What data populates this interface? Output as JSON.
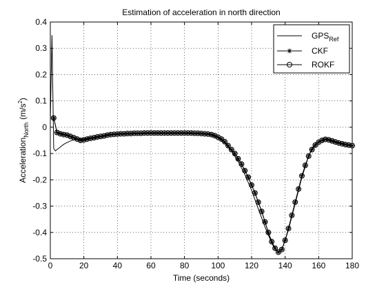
{
  "chart_data": {
    "type": "line",
    "title": "Estimation of  acceleration in north direction",
    "xlabel": "Time (seconds)",
    "ylabel": {
      "base": "Acceleration",
      "sub": "North",
      "unit_prefix": "(m/s",
      "unit_sup": "2",
      "unit_suffix": ")"
    },
    "xlim": [
      0,
      180
    ],
    "ylim": [
      -0.5,
      0.4
    ],
    "xticks": [
      0,
      20,
      40,
      60,
      80,
      100,
      120,
      140,
      160,
      180
    ],
    "yticks": [
      -0.5,
      -0.4,
      -0.3,
      -0.2,
      -0.1,
      0,
      0.1,
      0.2,
      0.3,
      0.4
    ],
    "grid": true,
    "legend_placement": "top-right",
    "series": [
      {
        "name": "GPS",
        "name_sub": "Ref",
        "marker": "none",
        "color": "#000000",
        "x": [
          0,
          1,
          2,
          3,
          4,
          6,
          8,
          10,
          12,
          14,
          16,
          18,
          20,
          22,
          25,
          30,
          35,
          40,
          50,
          60,
          70,
          80,
          90,
          95,
          100,
          104,
          108,
          112,
          116,
          120,
          124,
          128,
          130,
          132,
          134,
          135,
          136,
          137,
          138,
          140,
          142,
          144,
          146,
          148,
          150,
          152,
          154,
          156,
          158,
          160,
          162,
          164,
          165,
          166,
          168,
          170,
          172,
          174,
          176,
          178,
          180
        ],
        "values": [
          0.02,
          0.35,
          -0.08,
          -0.09,
          -0.085,
          -0.075,
          -0.065,
          -0.058,
          -0.052,
          -0.048,
          -0.046,
          -0.045,
          -0.044,
          -0.042,
          -0.04,
          -0.035,
          -0.03,
          -0.027,
          -0.025,
          -0.023,
          -0.023,
          -0.023,
          -0.025,
          -0.028,
          -0.04,
          -0.06,
          -0.09,
          -0.13,
          -0.18,
          -0.24,
          -0.31,
          -0.38,
          -0.41,
          -0.44,
          -0.465,
          -0.47,
          -0.475,
          -0.47,
          -0.465,
          -0.43,
          -0.39,
          -0.34,
          -0.29,
          -0.24,
          -0.19,
          -0.15,
          -0.11,
          -0.08,
          -0.065,
          -0.055,
          -0.05,
          -0.045,
          -0.045,
          -0.047,
          -0.05,
          -0.055,
          -0.06,
          -0.063,
          -0.066,
          -0.068,
          -0.07
        ]
      },
      {
        "name": "CKF",
        "marker": "asterisk",
        "color": "#000000",
        "x": [
          2,
          4,
          6,
          8,
          10,
          12,
          14,
          16,
          18,
          20,
          22,
          24,
          26,
          28,
          30,
          32,
          34,
          36,
          38,
          40,
          42,
          44,
          46,
          48,
          50,
          52,
          54,
          56,
          58,
          60,
          62,
          64,
          66,
          68,
          70,
          72,
          74,
          76,
          78,
          80,
          82,
          84,
          86,
          88,
          90,
          92,
          94,
          96,
          98,
          100,
          102,
          104,
          106,
          108,
          110,
          112,
          114,
          116,
          118,
          120,
          122,
          124,
          126,
          128,
          130,
          132,
          134,
          136,
          138,
          140,
          142,
          144,
          146,
          148,
          150,
          152,
          154,
          156,
          158,
          160,
          162,
          164,
          166,
          168,
          170,
          172,
          174,
          176,
          178,
          180
        ],
        "values": [
          0.035,
          -0.02,
          -0.025,
          -0.028,
          -0.03,
          -0.035,
          -0.04,
          -0.045,
          -0.05,
          -0.048,
          -0.045,
          -0.042,
          -0.04,
          -0.037,
          -0.035,
          -0.033,
          -0.03,
          -0.028,
          -0.027,
          -0.026,
          -0.025,
          -0.025,
          -0.024,
          -0.024,
          -0.023,
          -0.023,
          -0.023,
          -0.022,
          -0.022,
          -0.022,
          -0.022,
          -0.022,
          -0.022,
          -0.022,
          -0.022,
          -0.022,
          -0.022,
          -0.022,
          -0.022,
          -0.022,
          -0.022,
          -0.022,
          -0.023,
          -0.023,
          -0.024,
          -0.025,
          -0.026,
          -0.028,
          -0.032,
          -0.038,
          -0.045,
          -0.055,
          -0.07,
          -0.085,
          -0.1,
          -0.12,
          -0.14,
          -0.165,
          -0.19,
          -0.22,
          -0.25,
          -0.285,
          -0.32,
          -0.36,
          -0.4,
          -0.435,
          -0.46,
          -0.475,
          -0.465,
          -0.43,
          -0.385,
          -0.335,
          -0.285,
          -0.235,
          -0.185,
          -0.145,
          -0.11,
          -0.085,
          -0.068,
          -0.057,
          -0.05,
          -0.046,
          -0.048,
          -0.052,
          -0.056,
          -0.06,
          -0.063,
          -0.066,
          -0.068,
          -0.07
        ]
      },
      {
        "name": "ROKF",
        "marker": "circle",
        "color": "#000000",
        "x": [
          2,
          4,
          6,
          8,
          10,
          12,
          14,
          16,
          18,
          20,
          22,
          24,
          26,
          28,
          30,
          32,
          34,
          36,
          38,
          40,
          42,
          44,
          46,
          48,
          50,
          52,
          54,
          56,
          58,
          60,
          62,
          64,
          66,
          68,
          70,
          72,
          74,
          76,
          78,
          80,
          82,
          84,
          86,
          88,
          90,
          92,
          94,
          96,
          98,
          100,
          102,
          104,
          106,
          108,
          110,
          112,
          114,
          116,
          118,
          120,
          122,
          124,
          126,
          128,
          130,
          132,
          134,
          136,
          138,
          140,
          142,
          144,
          146,
          148,
          150,
          152,
          154,
          156,
          158,
          160,
          162,
          164,
          166,
          168,
          170,
          172,
          174,
          176,
          178,
          180
        ],
        "values": [
          0.035,
          -0.02,
          -0.025,
          -0.028,
          -0.03,
          -0.035,
          -0.04,
          -0.045,
          -0.05,
          -0.048,
          -0.045,
          -0.042,
          -0.04,
          -0.037,
          -0.035,
          -0.033,
          -0.03,
          -0.028,
          -0.027,
          -0.026,
          -0.025,
          -0.025,
          -0.024,
          -0.024,
          -0.023,
          -0.023,
          -0.023,
          -0.022,
          -0.022,
          -0.022,
          -0.022,
          -0.022,
          -0.022,
          -0.022,
          -0.022,
          -0.022,
          -0.022,
          -0.022,
          -0.022,
          -0.022,
          -0.022,
          -0.022,
          -0.023,
          -0.023,
          -0.024,
          -0.025,
          -0.026,
          -0.028,
          -0.032,
          -0.038,
          -0.045,
          -0.055,
          -0.07,
          -0.085,
          -0.1,
          -0.12,
          -0.14,
          -0.165,
          -0.19,
          -0.22,
          -0.25,
          -0.285,
          -0.32,
          -0.36,
          -0.4,
          -0.435,
          -0.46,
          -0.475,
          -0.465,
          -0.43,
          -0.385,
          -0.335,
          -0.285,
          -0.235,
          -0.185,
          -0.145,
          -0.11,
          -0.085,
          -0.068,
          -0.057,
          -0.05,
          -0.046,
          -0.048,
          -0.052,
          -0.056,
          -0.06,
          -0.063,
          -0.066,
          -0.068,
          -0.07
        ]
      }
    ]
  }
}
